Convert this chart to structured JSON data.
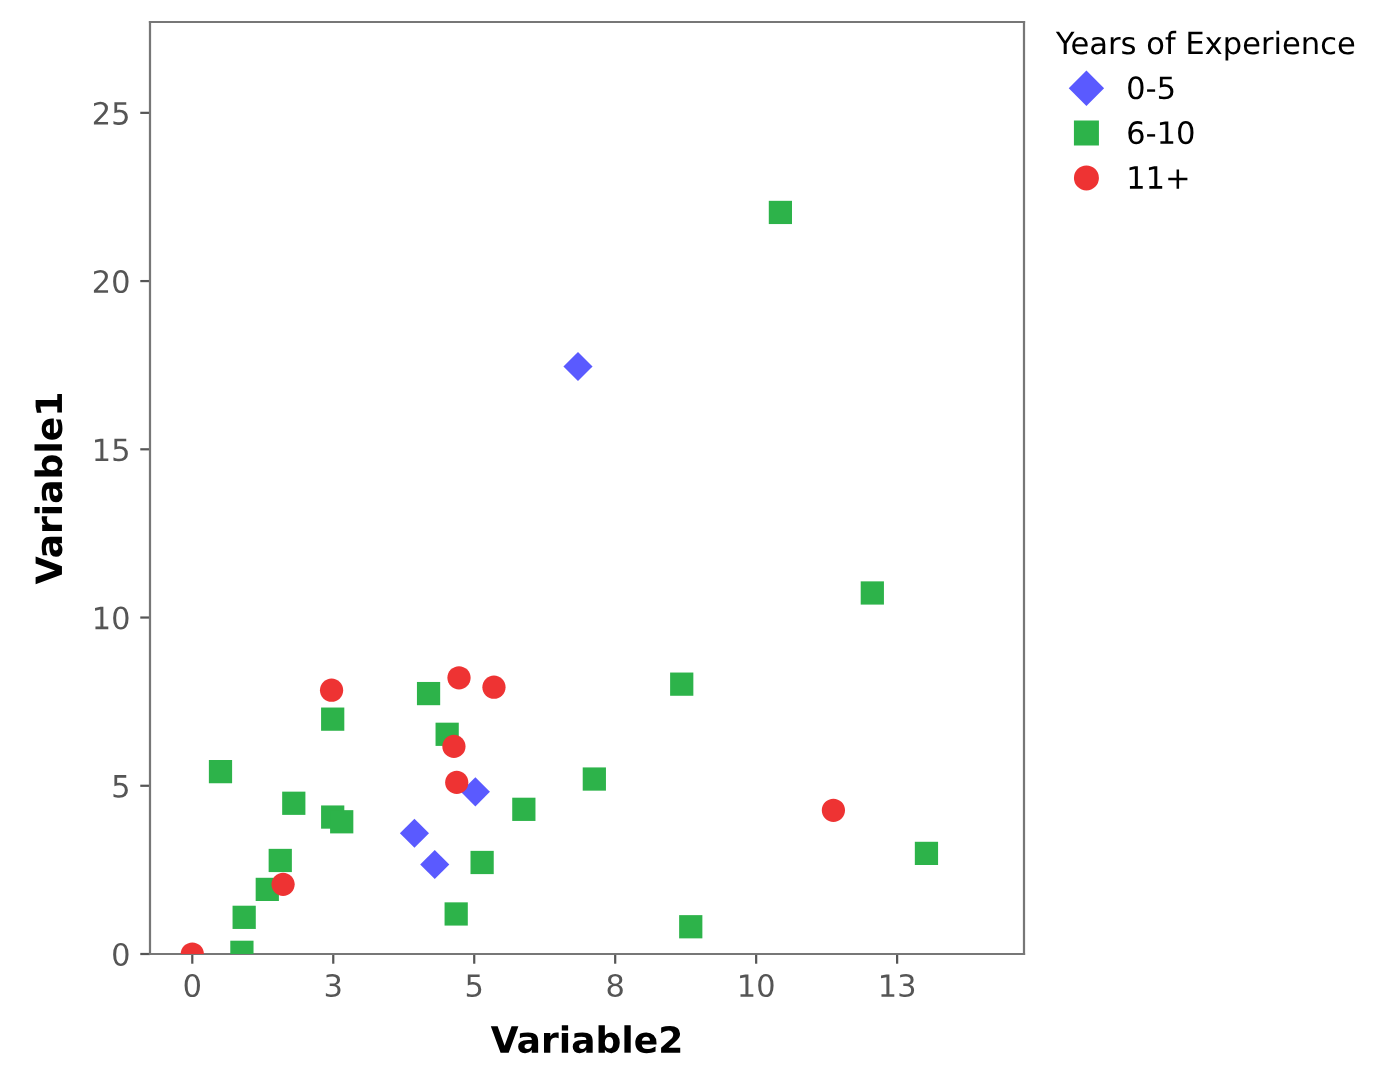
{
  "chart_data": {
    "type": "scatter",
    "xlabel": "Variable2",
    "ylabel": "Variable1",
    "legend_title": "Years of Experience",
    "legend": "top right",
    "grid": false,
    "xlim": [
      -0.75,
      14.75
    ],
    "xticks": [
      0,
      {
        "value": 2.5,
        "label": "3"
      },
      5,
      {
        "value": 7.5,
        "label": "8"
      },
      10,
      {
        "value": 12.5,
        "label": "13"
      }
    ],
    "ylim": [
      0,
      27.7
    ],
    "yticks": [
      0,
      5,
      10,
      15,
      20,
      25
    ],
    "series": [
      {
        "name": "0-5",
        "color": "#5a5aff",
        "marker": "diamond",
        "x": [
          6.84,
          3.94,
          4.3,
          5.02
        ],
        "values": [
          17.46,
          3.59,
          2.66,
          4.82
        ]
      },
      {
        "name": "6-10",
        "color": "#2db34a",
        "marker": "square",
        "x": [
          10.43,
          12.06,
          0.5,
          2.49,
          4.19,
          4.52,
          8.68,
          7.13,
          5.88,
          1.8,
          2.49,
          2.65,
          1.56,
          1.33,
          0.92,
          0.88,
          5.14,
          4.68,
          8.84,
          13.02
        ],
        "values": [
          22.04,
          10.73,
          5.42,
          6.98,
          7.74,
          6.53,
          8.02,
          5.2,
          4.3,
          4.48,
          4.07,
          3.93,
          2.78,
          1.92,
          1.09,
          0.05,
          2.72,
          1.19,
          0.81,
          2.99
        ]
      },
      {
        "name": "11+",
        "color": "#ee3333",
        "marker": "circle",
        "x": [
          0,
          1.61,
          2.47,
          4.73,
          5.35,
          4.64,
          4.69,
          11.37
        ],
        "values": [
          0,
          2.07,
          7.84,
          8.21,
          7.93,
          6.17,
          5.1,
          4.27
        ]
      }
    ]
  }
}
